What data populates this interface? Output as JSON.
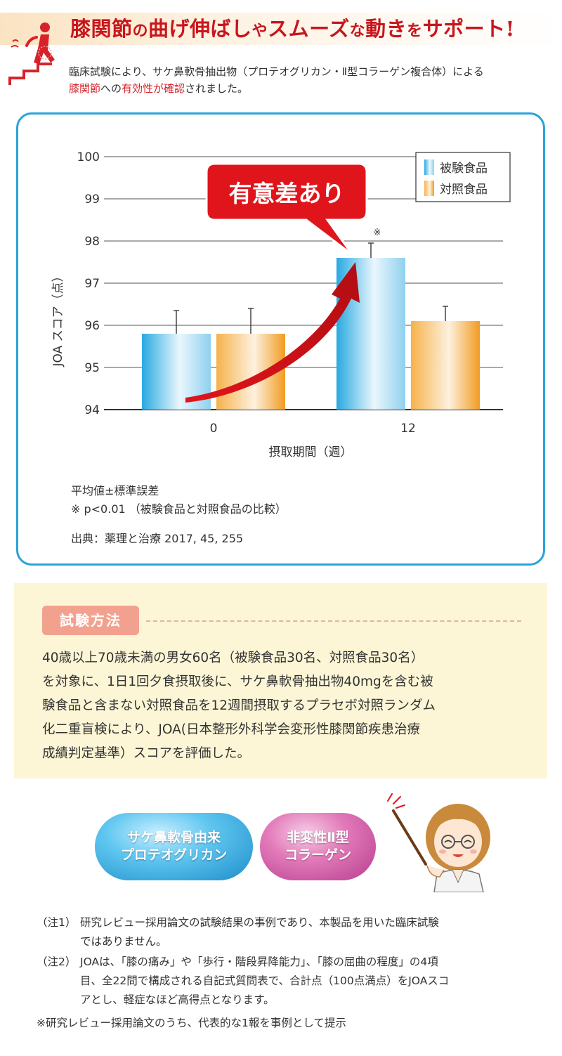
{
  "header": {
    "headline_part1": "膝関節",
    "headline_part2": "の",
    "headline_part3": "曲げ伸ばし",
    "headline_part4": "や",
    "headline_part5": "スムーズ",
    "headline_part6": "な",
    "headline_part7": "動き",
    "headline_part8": "を",
    "headline_part9": "サポート!",
    "intro_line1": "臨床試験により、サケ鼻軟骨抽出物（プロテオグリカン・Ⅱ型コラーゲン複合体）による",
    "intro_red1": "膝関節",
    "intro_mid": "への",
    "intro_red2": "有効性が確認",
    "intro_end": "されました。",
    "colors": {
      "accent": "#c8161d",
      "band": "#fbe3c2"
    }
  },
  "chart": {
    "callout": "有意差あり",
    "significance_mark": "※",
    "notes_line1": "平均値±標準誤差",
    "notes_line2": "※ p<0.01 （被験食品と対照食品の比較）",
    "source": "出典：薬理と治療 2017, 45, 255",
    "colors": {
      "test": "#29a9e1",
      "control": "#f29b21",
      "border": "#2aa3d8",
      "callout": "#e0151b"
    }
  },
  "chart_data": {
    "type": "bar",
    "xlabel": "摂取期間（週）",
    "ylabel": "JOA スコア（点）",
    "ylim": [
      94,
      100
    ],
    "yticks": [
      94,
      95,
      96,
      97,
      98,
      99,
      100
    ],
    "categories": [
      "0",
      "12"
    ],
    "series": [
      {
        "name": "被験食品",
        "values": [
          95.8,
          97.6
        ],
        "errors": [
          0.55,
          0.35
        ]
      },
      {
        "name": "対照食品",
        "values": [
          95.8,
          96.1
        ],
        "errors": [
          0.6,
          0.35
        ]
      }
    ],
    "legend": "top-right",
    "grid": true
  },
  "method": {
    "tag": "試験方法",
    "line1": "40歳以上70歳未満の男女60名（被験食品30名、対照食品30名）",
    "line2": "を対象に、1日1回夕食摂取後に、サケ鼻軟骨抽出物40mgを含む被",
    "line3": "験食品と含まない対照食品を12週間摂取するプラセボ対照ランダム",
    "line4": "化二重盲検により、JOA(日本整形外科学会変形性膝関節疾患治療",
    "line5": "成績判定基準）スコアを評価した。"
  },
  "bubbles": {
    "blue_line1": "サケ鼻軟骨由来",
    "blue_line2": "プロテオグリカン",
    "pink_line1": "非変性Ⅱ型",
    "pink_line2": "コラーゲン"
  },
  "footnotes": {
    "note1_label": "（注1）",
    "note1_line1": "研究レビュー採用論文の試験結果の事例であり、本製品を用いた臨床試験",
    "note1_line2": "ではありません。",
    "note2_label": "（注2）",
    "note2_line1": "JOAは、「膝の痛み」や「歩行・階段昇降能力」、「膝の屈曲の程度」の4項",
    "note2_line2": "目、全22問で構成される自記式質問表で、合計点（100点満点）をJOAスコ",
    "note2_line3": "アとし、軽症なほど高得点となります。",
    "note3": "※研究レビュー採用論文のうち、代表的な1報を事例として提示"
  }
}
